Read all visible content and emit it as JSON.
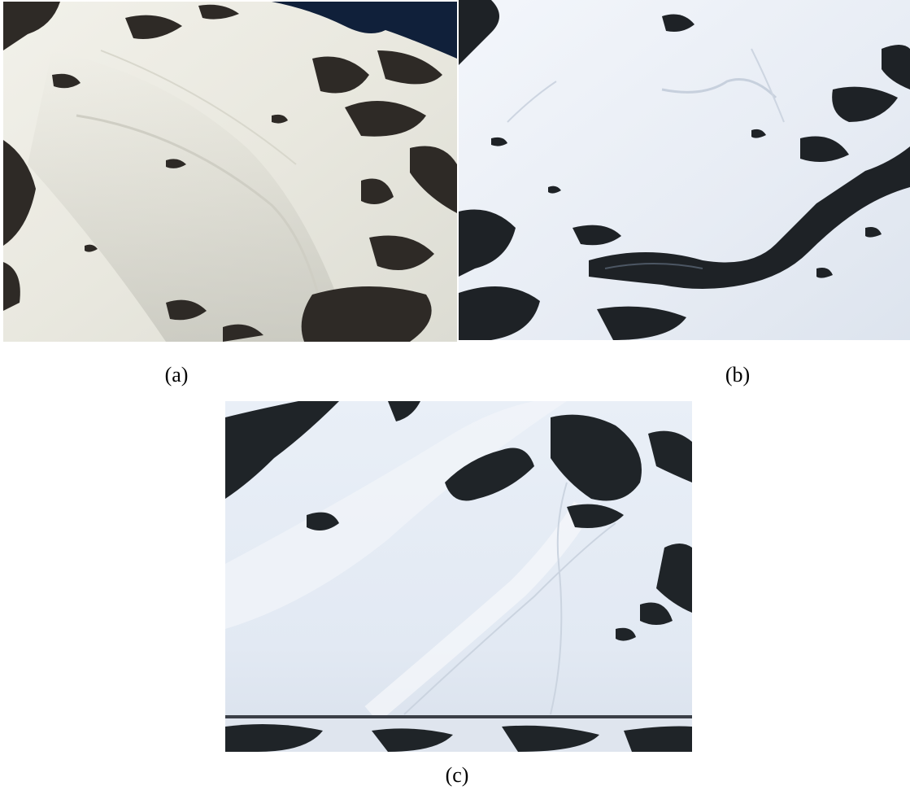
{
  "figure": {
    "panels": [
      {
        "caption": "(a)",
        "icon": "snowy-mountain-slope-photo",
        "sky_color": "#0f1c33",
        "snow_color": "#ecebe2",
        "rock_color": "#2e2a26"
      },
      {
        "caption": "(b)",
        "icon": "avalanche-crown-slope-photo",
        "snow_color": "#eef2f8",
        "rock_color": "#1e2226"
      },
      {
        "caption": "(c)",
        "icon": "avalanche-debris-slope-photo",
        "snow_color": "#e8eef6",
        "rock_color": "#1f2428"
      }
    ]
  }
}
